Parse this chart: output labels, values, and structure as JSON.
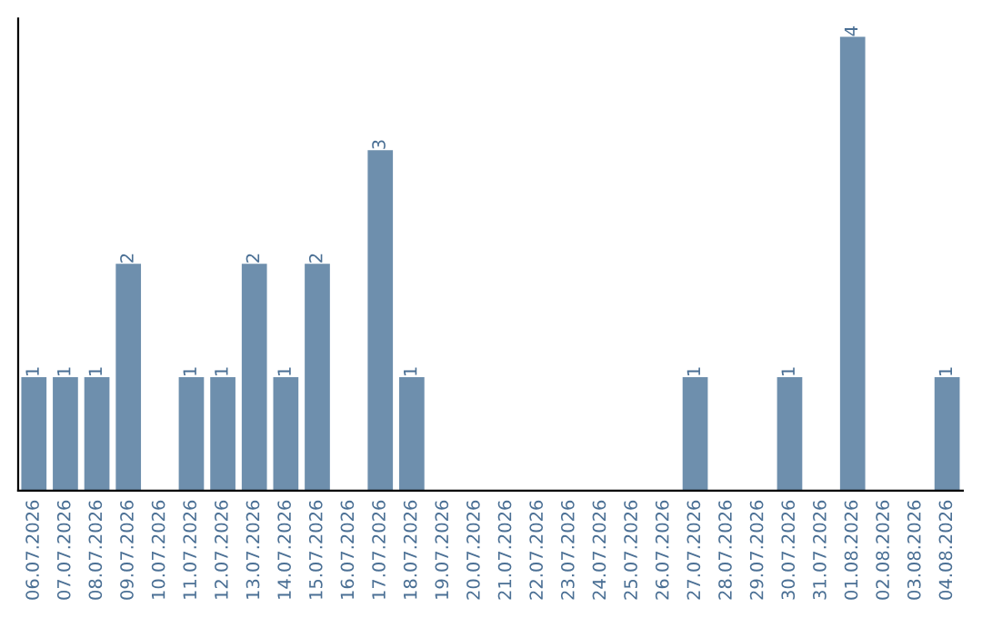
{
  "chart_data": {
    "type": "bar",
    "categories": [
      "06.07.2026",
      "07.07.2026",
      "08.07.2026",
      "09.07.2026",
      "10.07.2026",
      "11.07.2026",
      "12.07.2026",
      "13.07.2026",
      "14.07.2026",
      "15.07.2026",
      "16.07.2026",
      "17.07.2026",
      "18.07.2026",
      "19.07.2026",
      "20.07.2026",
      "21.07.2026",
      "22.07.2026",
      "23.07.2026",
      "24.07.2026",
      "25.07.2026",
      "26.07.2026",
      "27.07.2026",
      "28.07.2026",
      "29.07.2026",
      "30.07.2026",
      "31.07.2026",
      "01.08.2026",
      "02.08.2026",
      "03.08.2026",
      "04.08.2026"
    ],
    "values": [
      1,
      1,
      1,
      2,
      0,
      1,
      1,
      2,
      1,
      2,
      0,
      3,
      1,
      0,
      0,
      0,
      0,
      0,
      0,
      0,
      0,
      1,
      0,
      0,
      1,
      0,
      4,
      0,
      0,
      1
    ],
    "value_labels": [
      "1",
      "1",
      "1",
      "2",
      null,
      "1",
      "1",
      "2",
      "1",
      "2",
      null,
      "3",
      "1",
      null,
      null,
      null,
      null,
      null,
      null,
      null,
      null,
      "1",
      null,
      null,
      "1",
      null,
      "4",
      null,
      null,
      "1"
    ],
    "color": "#6e8fad",
    "ylim": [
      0,
      4.16
    ],
    "tick_labels": "x",
    "grid": false,
    "legend": false
  }
}
